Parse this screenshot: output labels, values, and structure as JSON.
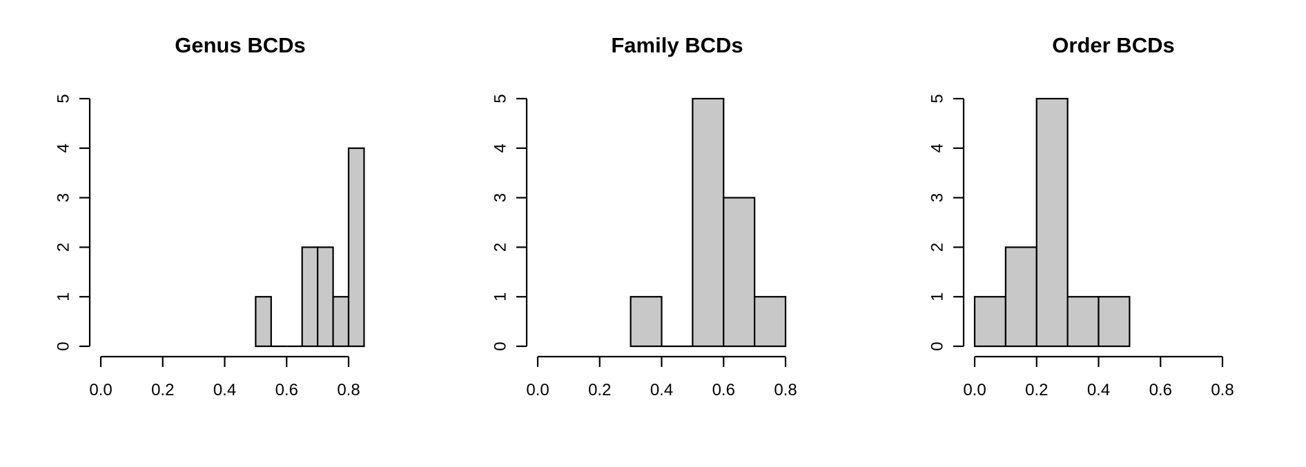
{
  "colors": {
    "bar_fill": "#c8c8c8",
    "bar_stroke": "#000000",
    "axis": "#000000",
    "background": "#ffffff"
  },
  "chart_data": [
    {
      "type": "bar",
      "subtype": "histogram",
      "title": "Genus BCDs",
      "xlabel": "",
      "ylabel": "",
      "xlim": [
        0,
        0.8
      ],
      "x_ticks": [
        "0.0",
        "0.2",
        "0.4",
        "0.6",
        "0.8"
      ],
      "ylim": [
        0,
        5
      ],
      "y_ticks": [
        "0",
        "1",
        "2",
        "3",
        "4",
        "5"
      ],
      "grid": false,
      "bins": [
        {
          "from": 0.5,
          "to": 0.55,
          "count": 1
        },
        {
          "from": 0.55,
          "to": 0.6,
          "count": 0
        },
        {
          "from": 0.6,
          "to": 0.65,
          "count": 0
        },
        {
          "from": 0.65,
          "to": 0.7,
          "count": 2
        },
        {
          "from": 0.7,
          "to": 0.75,
          "count": 2
        },
        {
          "from": 0.75,
          "to": 0.8,
          "count": 1
        },
        {
          "from": 0.8,
          "to": 0.85,
          "count": 4
        }
      ]
    },
    {
      "type": "bar",
      "subtype": "histogram",
      "title": "Family BCDs",
      "xlabel": "",
      "ylabel": "",
      "xlim": [
        0,
        0.8
      ],
      "x_ticks": [
        "0.0",
        "0.2",
        "0.4",
        "0.6",
        "0.8"
      ],
      "ylim": [
        0,
        5
      ],
      "y_ticks": [
        "0",
        "1",
        "2",
        "3",
        "4",
        "5"
      ],
      "grid": false,
      "bins": [
        {
          "from": 0.3,
          "to": 0.4,
          "count": 1
        },
        {
          "from": 0.4,
          "to": 0.5,
          "count": 0
        },
        {
          "from": 0.5,
          "to": 0.6,
          "count": 5
        },
        {
          "from": 0.6,
          "to": 0.7,
          "count": 3
        },
        {
          "from": 0.7,
          "to": 0.8,
          "count": 1
        }
      ]
    },
    {
      "type": "bar",
      "subtype": "histogram",
      "title": "Order BCDs",
      "xlabel": "",
      "ylabel": "",
      "xlim": [
        0,
        0.8
      ],
      "x_ticks": [
        "0.0",
        "0.2",
        "0.4",
        "0.6",
        "0.8"
      ],
      "ylim": [
        0,
        5
      ],
      "y_ticks": [
        "0",
        "1",
        "2",
        "3",
        "4",
        "5"
      ],
      "grid": false,
      "bins": [
        {
          "from": 0.0,
          "to": 0.1,
          "count": 1
        },
        {
          "from": 0.1,
          "to": 0.2,
          "count": 2
        },
        {
          "from": 0.2,
          "to": 0.3,
          "count": 5
        },
        {
          "from": 0.3,
          "to": 0.4,
          "count": 1
        },
        {
          "from": 0.4,
          "to": 0.5,
          "count": 1
        }
      ]
    }
  ]
}
